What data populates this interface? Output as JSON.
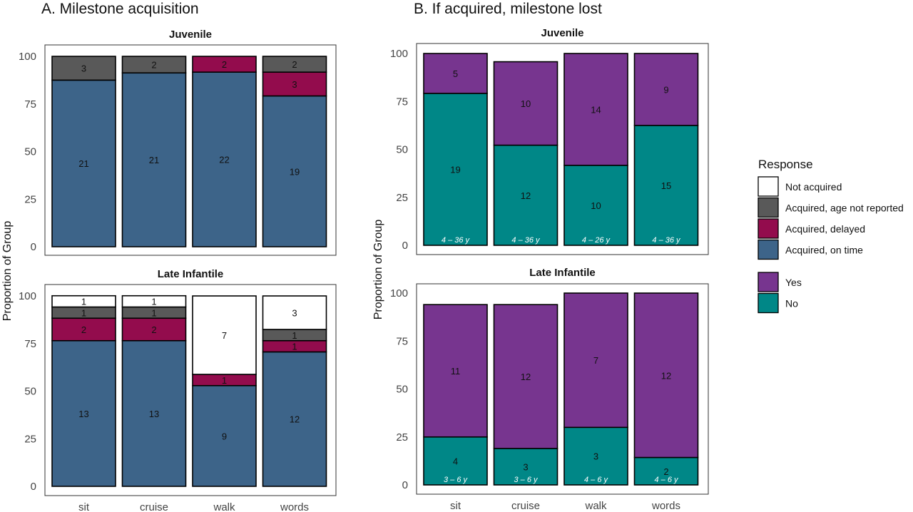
{
  "colors": {
    "Not acquired": "#ffffff",
    "Acquired, age not reported": "#595959",
    "Acquired, delayed": "#930c4d",
    "Acquired, on time": "#3d6489",
    "Yes": "#77358f",
    "No": "#008787"
  },
  "legend": {
    "title": "Response",
    "group1": [
      "Not acquired",
      "Acquired, age not reported",
      "Acquired, delayed",
      "Acquired, on time"
    ],
    "group2": [
      "Yes",
      "No"
    ]
  },
  "chart_data": [
    {
      "type": "bar",
      "stacked": true,
      "title": "A. Milestone acquisition",
      "ylabel": "Proportion of Group",
      "ylim": [
        0,
        100
      ],
      "yticks": [
        0,
        25,
        50,
        75,
        100
      ],
      "categories": [
        "sit",
        "cruise",
        "walk",
        "words"
      ],
      "facets": [
        {
          "name": "Juvenile",
          "stack_order": [
            "Acquired, on time",
            "Acquired, delayed",
            "Acquired, age not reported",
            "Not acquired"
          ],
          "bars": [
            {
              "category": "sit",
              "segments": [
                {
                  "series": "Acquired, on time",
                  "value": 87.5,
                  "label": "21"
                },
                {
                  "series": "Acquired, age not reported",
                  "value": 12.5,
                  "label": "3"
                }
              ]
            },
            {
              "category": "cruise",
              "segments": [
                {
                  "series": "Acquired, on time",
                  "value": 91.3,
                  "label": "21"
                },
                {
                  "series": "Acquired, age not reported",
                  "value": 8.7,
                  "label": "2"
                }
              ]
            },
            {
              "category": "walk",
              "segments": [
                {
                  "series": "Acquired, on time",
                  "value": 91.7,
                  "label": "22"
                },
                {
                  "series": "Acquired, delayed",
                  "value": 8.3,
                  "label": "2"
                }
              ]
            },
            {
              "category": "words",
              "segments": [
                {
                  "series": "Acquired, on time",
                  "value": 79.2,
                  "label": "19"
                },
                {
                  "series": "Acquired, delayed",
                  "value": 12.5,
                  "label": "3"
                },
                {
                  "series": "Acquired, age not reported",
                  "value": 8.3,
                  "label": "2"
                }
              ]
            }
          ]
        },
        {
          "name": "Late Infantile",
          "bars": [
            {
              "category": "sit",
              "segments": [
                {
                  "series": "Acquired, on time",
                  "value": 76.5,
                  "label": "13"
                },
                {
                  "series": "Acquired, delayed",
                  "value": 11.8,
                  "label": "2"
                },
                {
                  "series": "Acquired, age not reported",
                  "value": 5.9,
                  "label": "1"
                },
                {
                  "series": "Not acquired",
                  "value": 5.9,
                  "label": "1"
                }
              ]
            },
            {
              "category": "cruise",
              "segments": [
                {
                  "series": "Acquired, on time",
                  "value": 76.5,
                  "label": "13"
                },
                {
                  "series": "Acquired, delayed",
                  "value": 11.8,
                  "label": "2"
                },
                {
                  "series": "Acquired, age not reported",
                  "value": 5.9,
                  "label": "1"
                },
                {
                  "series": "Not acquired",
                  "value": 5.9,
                  "label": "1"
                }
              ]
            },
            {
              "category": "walk",
              "segments": [
                {
                  "series": "Acquired, on time",
                  "value": 52.9,
                  "label": "9"
                },
                {
                  "series": "Acquired, delayed",
                  "value": 5.9,
                  "label": "1"
                },
                {
                  "series": "Not acquired",
                  "value": 41.2,
                  "label": "7"
                }
              ]
            },
            {
              "category": "words",
              "segments": [
                {
                  "series": "Acquired, on time",
                  "value": 70.6,
                  "label": "12"
                },
                {
                  "series": "Acquired, delayed",
                  "value": 5.9,
                  "label": "1"
                },
                {
                  "series": "Acquired, age not reported",
                  "value": 5.9,
                  "label": "1"
                },
                {
                  "series": "Not acquired",
                  "value": 17.6,
                  "label": "3"
                }
              ]
            }
          ]
        }
      ]
    },
    {
      "type": "bar",
      "stacked": true,
      "title": "B. If acquired, milestone lost",
      "ylabel": "Proportion of Group",
      "ylim": [
        0,
        100
      ],
      "yticks": [
        0,
        25,
        50,
        75,
        100
      ],
      "categories": [
        "sit",
        "cruise",
        "walk",
        "words"
      ],
      "facets": [
        {
          "name": "Juvenile",
          "bars": [
            {
              "category": "sit",
              "age_range": "4 – 36 y",
              "segments": [
                {
                  "series": "No",
                  "value": 79.2,
                  "label": "19"
                },
                {
                  "series": "Yes",
                  "value": 20.8,
                  "label": "5"
                }
              ]
            },
            {
              "category": "cruise",
              "age_range": "4 – 36 y",
              "segments": [
                {
                  "series": "No",
                  "value": 52.2,
                  "label": "12"
                },
                {
                  "series": "Yes",
                  "value": 43.5,
                  "label": "10"
                }
              ]
            },
            {
              "category": "walk",
              "age_range": "4 – 26 y",
              "segments": [
                {
                  "series": "No",
                  "value": 41.7,
                  "label": "10"
                },
                {
                  "series": "Yes",
                  "value": 58.3,
                  "label": "14"
                }
              ]
            },
            {
              "category": "words",
              "age_range": "4 – 36 y",
              "segments": [
                {
                  "series": "No",
                  "value": 62.5,
                  "label": "15"
                },
                {
                  "series": "Yes",
                  "value": 37.5,
                  "label": "9"
                }
              ]
            }
          ]
        },
        {
          "name": "Late Infantile",
          "bars": [
            {
              "category": "sit",
              "age_range": "3 – 6 y",
              "segments": [
                {
                  "series": "No",
                  "value": 25.0,
                  "label": "4"
                },
                {
                  "series": "Yes",
                  "value": 69.0,
                  "label": "11"
                }
              ]
            },
            {
              "category": "cruise",
              "age_range": "3 – 6 y",
              "segments": [
                {
                  "series": "No",
                  "value": 19.0,
                  "label": "3"
                },
                {
                  "series": "Yes",
                  "value": 75.0,
                  "label": "12"
                }
              ]
            },
            {
              "category": "walk",
              "age_range": "4 – 6 y",
              "segments": [
                {
                  "series": "No",
                  "value": 30.0,
                  "label": "3"
                },
                {
                  "series": "Yes",
                  "value": 70.0,
                  "label": "7"
                }
              ]
            },
            {
              "category": "words",
              "age_range": "4 – 6 y",
              "segments": [
                {
                  "series": "No",
                  "value": 14.3,
                  "label": "2"
                },
                {
                  "series": "Yes",
                  "value": 85.7,
                  "label": "12"
                }
              ]
            }
          ]
        }
      ]
    }
  ]
}
